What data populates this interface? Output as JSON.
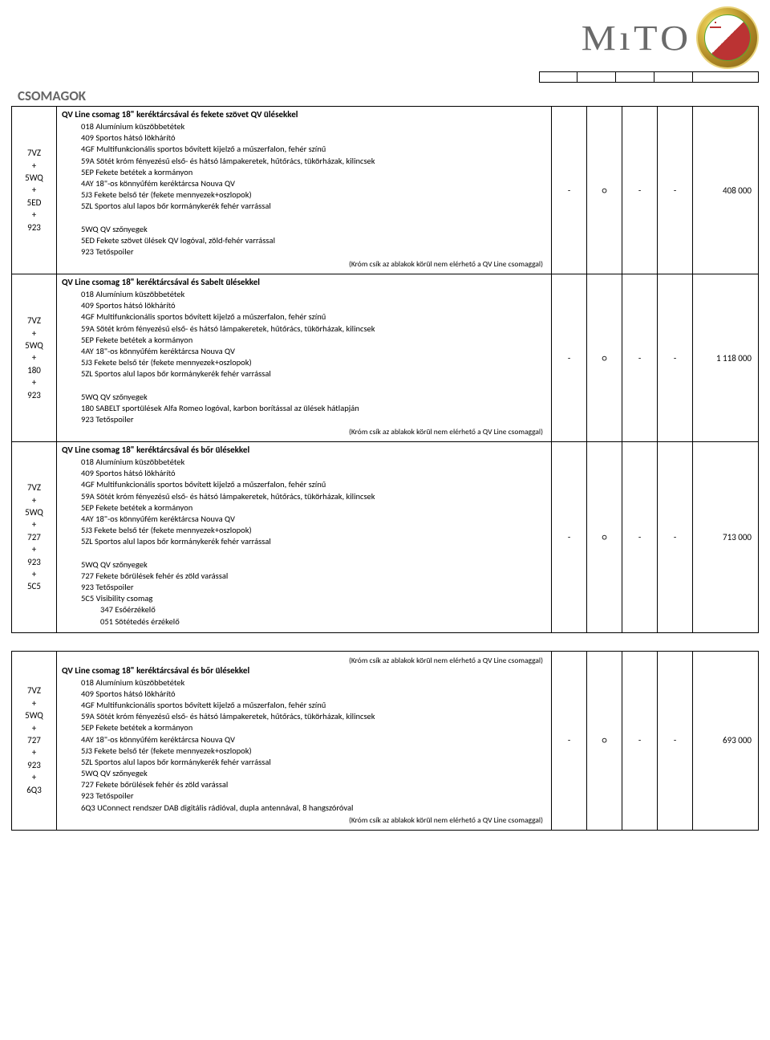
{
  "header": {
    "logo_text": "MıTO"
  },
  "section_title": "CSOMAGOK",
  "note_text": "(Króm csík az ablakok körül nem elérhető a QV Line csomaggal)",
  "packages": [
    {
      "codes": [
        "7VZ",
        "+",
        "5WQ",
        "+",
        "5ED",
        "+",
        "923"
      ],
      "title": "QV Line csomag 18\" keréktárcsával és fekete szövet QV ülésekkel",
      "lines": [
        "018 Alumínium küszöbbetétek",
        "409 Sportos hátsó lökhárító",
        "4GF Multifunkcionális sportos bővített kijelző a műszerfalon, fehér színű",
        "59A Sötét króm fényezésű első- és hátsó lámpakeretek, hűtőrács, tükörházak, kilincsek",
        "5EP Fekete betétek a kormányon",
        "4AY 18\"-os könnyűfém keréktárcsa Nouva QV",
        "5J3 Fekete belső tér (fekete mennyezek+oszlopok)",
        "5ZL Sportos alul lapos bőr kormánykerék fehér varrással",
        "",
        "5WQ QV szőnyegek",
        "5ED Fekete szövet ülések QV logóval, zöld-fehér varrással",
        "923 Tetőspoiler"
      ],
      "avail": [
        "-",
        "○",
        "-",
        "-"
      ],
      "price": "408 000",
      "has_note": true
    },
    {
      "codes": [
        "7VZ",
        "+",
        "5WQ",
        "+",
        "180",
        "+",
        "923"
      ],
      "title": "QV Line csomag 18\" keréktárcsával és Sabelt ülésekkel",
      "lines": [
        "018 Alumínium küszöbbetétek",
        "409 Sportos hátsó lökhárító",
        "4GF Multifunkcionális sportos bővített kijelző a műszerfalon, fehér színű",
        "59A Sötét króm fényezésű első- és hátsó lámpakeretek, hűtőrács, tükörházak, kilincsek",
        "5EP Fekete betétek a kormányon",
        "4AY 18\"-os könnyűfém keréktárcsa Nouva QV",
        "5J3 Fekete belső tér (fekete mennyezek+oszlopok)",
        "5ZL Sportos alul lapos bőr kormánykerék fehér varrással",
        "",
        "5WQ QV szőnyegek",
        "180 SABELT sportülések Alfa Romeo logóval, karbon borítással az ülések hátlapján",
        "923 Tetőspoiler"
      ],
      "avail": [
        "-",
        "○",
        "-",
        "-"
      ],
      "price": "1 118 000",
      "has_note": true
    },
    {
      "codes": [
        "7VZ",
        "+",
        "5WQ",
        "+",
        "727",
        "+",
        "923",
        "+",
        "5C5"
      ],
      "title": "QV Line csomag 18\" keréktárcsával és bőr ülésekkel",
      "lines": [
        "018 Alumínium küszöbbetétek",
        "409 Sportos hátsó lökhárító",
        "4GF Multifunkcionális sportos bővített kijelző a műszerfalon, fehér színű",
        "59A Sötét króm fényezésű első- és hátsó lámpakeretek, hűtőrács, tükörházak, kilincsek",
        "5EP Fekete betétek a kormányon",
        "4AY 18\"-os könnyűfém keréktárcsa Nouva QV",
        "5J3 Fekete belső tér (fekete mennyezek+oszlopok)",
        "5ZL Sportos alul lapos bőr kormánykerék fehér varrással",
        "",
        "5WQ QV szőnyegek",
        "727  Fekete bőrülések fehér és zöld varással",
        "923 Tetőspoiler",
        "5C5 Visibility csomag"
      ],
      "sub_lines": [
        "347 Esőérzékelő",
        "051 Sötétedés érzékelő"
      ],
      "avail": [
        "-",
        "○",
        "-",
        "-"
      ],
      "price": "713 000",
      "has_note": false
    }
  ],
  "package4": {
    "codes": [
      "7VZ",
      "+",
      "5WQ",
      "+",
      "727",
      "+",
      "923",
      "+",
      "6Q3"
    ],
    "title": "QV Line csomag 18\" keréktárcsával és bőr ülésekkel",
    "lines": [
      "018 Alumínium küszöbbetétek",
      "409 Sportos hátsó lökhárító",
      "4GF Multifunkcionális sportos bővített kijelző a műszerfalon, fehér színű",
      "59A Sötét króm fényezésű első- és hátsó lámpakeretek, hűtőrács, tükörházak, kilincsek",
      "5EP Fekete betétek a kormányon",
      "4AY 18\"-os könnyűfém keréktárcsa Nouva QV",
      "5J3 Fekete belső tér (fekete mennyezek+oszlopok)",
      "5ZL Sportos alul lapos bőr kormánykerék fehér varrással",
      "5WQ QV szőnyegek",
      "727  Fekete bőrülések fehér és zöld varással",
      "923 Tetőspoiler",
      "6Q3  UConnect rendszer DAB digitális rádióval, dupla antennával, 8 hangszóróval"
    ],
    "avail": [
      "-",
      "○",
      "-",
      "-"
    ],
    "price": "693 000",
    "has_note_top": true,
    "has_note_bottom": true
  }
}
